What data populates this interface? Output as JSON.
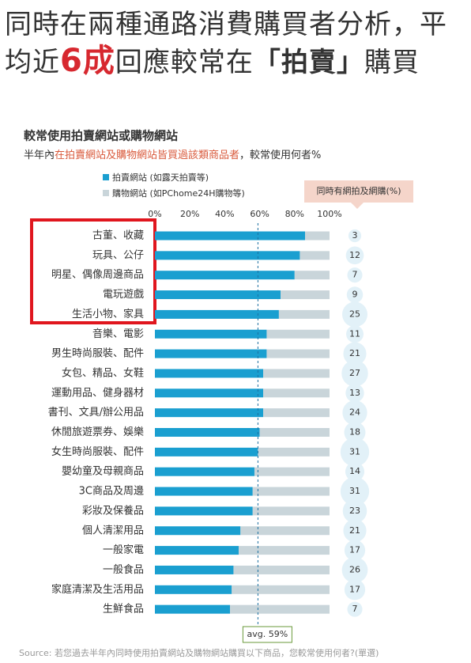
{
  "header": {
    "headline": [
      "同時在兩種通路消費購買者分析，平均近",
      "6成",
      "回應較常在",
      "「拍賣」",
      "購買"
    ]
  },
  "chart_data": {
    "type": "stacked_bar_horizontal",
    "title": "較常使用拍賣網站或購物網站",
    "subtitle": [
      "半年內",
      "在拍賣網站及購物網站皆買過該類商品者",
      "，較常使用何者%"
    ],
    "categories": [
      "古董、收藏",
      "玩具、公仔",
      "明星、偶像周邊商品",
      "電玩遊戲",
      "生活小物、家具",
      "音樂、電影",
      "男生時尚服裝、配件",
      "女包、精品、女鞋",
      "運動用品、健身器材",
      "書刊、文具/辦公用品",
      "休閒旅遊票券、娛樂",
      "女生時尚服裝、配件",
      "嬰幼童及母親商品",
      "3C商品及周邊",
      "彩妝及保養品",
      "個人清潔用品",
      "一般家電",
      "一般食品",
      "家庭清潔及生活用品",
      "生鮮食品"
    ],
    "series": [
      {
        "name": "拍賣網站 (如露天拍賣等)",
        "color": "#1a9fd0",
        "values": [
          86,
          83,
          80,
          72,
          71,
          64,
          64,
          62,
          62,
          62,
          60,
          59,
          57,
          56,
          56,
          49,
          48,
          45,
          44,
          43
        ]
      },
      {
        "name": "購物網站 (如PChome24H購物等)",
        "color": "#c9d5da",
        "values": [
          14,
          17,
          20,
          28,
          29,
          36,
          36,
          38,
          38,
          38,
          40,
          41,
          43,
          44,
          44,
          51,
          52,
          55,
          56,
          57
        ]
      }
    ],
    "both": {
      "name": "同時有網拍及網購(%)",
      "color": "#e2f1f8",
      "values": [
        3,
        12,
        7,
        9,
        25,
        11,
        21,
        27,
        13,
        24,
        18,
        31,
        14,
        31,
        23,
        21,
        17,
        26,
        17,
        7
      ]
    },
    "average": {
      "value": 59,
      "label": "avg. 59%"
    },
    "xlim": [
      0,
      100
    ],
    "xticks": [
      {
        "value": 0,
        "label": "0%"
      },
      {
        "value": 20,
        "label": "20%"
      },
      {
        "value": 40,
        "label": "40%"
      },
      {
        "value": 60,
        "label": "60%"
      },
      {
        "value": 80,
        "label": "80%"
      },
      {
        "value": 100,
        "label": "100%"
      }
    ],
    "source": "Source: 若您過去半年內同時使用拍賣網站及購物網站購買以下商品，您較常使用何者?(單選)"
  }
}
